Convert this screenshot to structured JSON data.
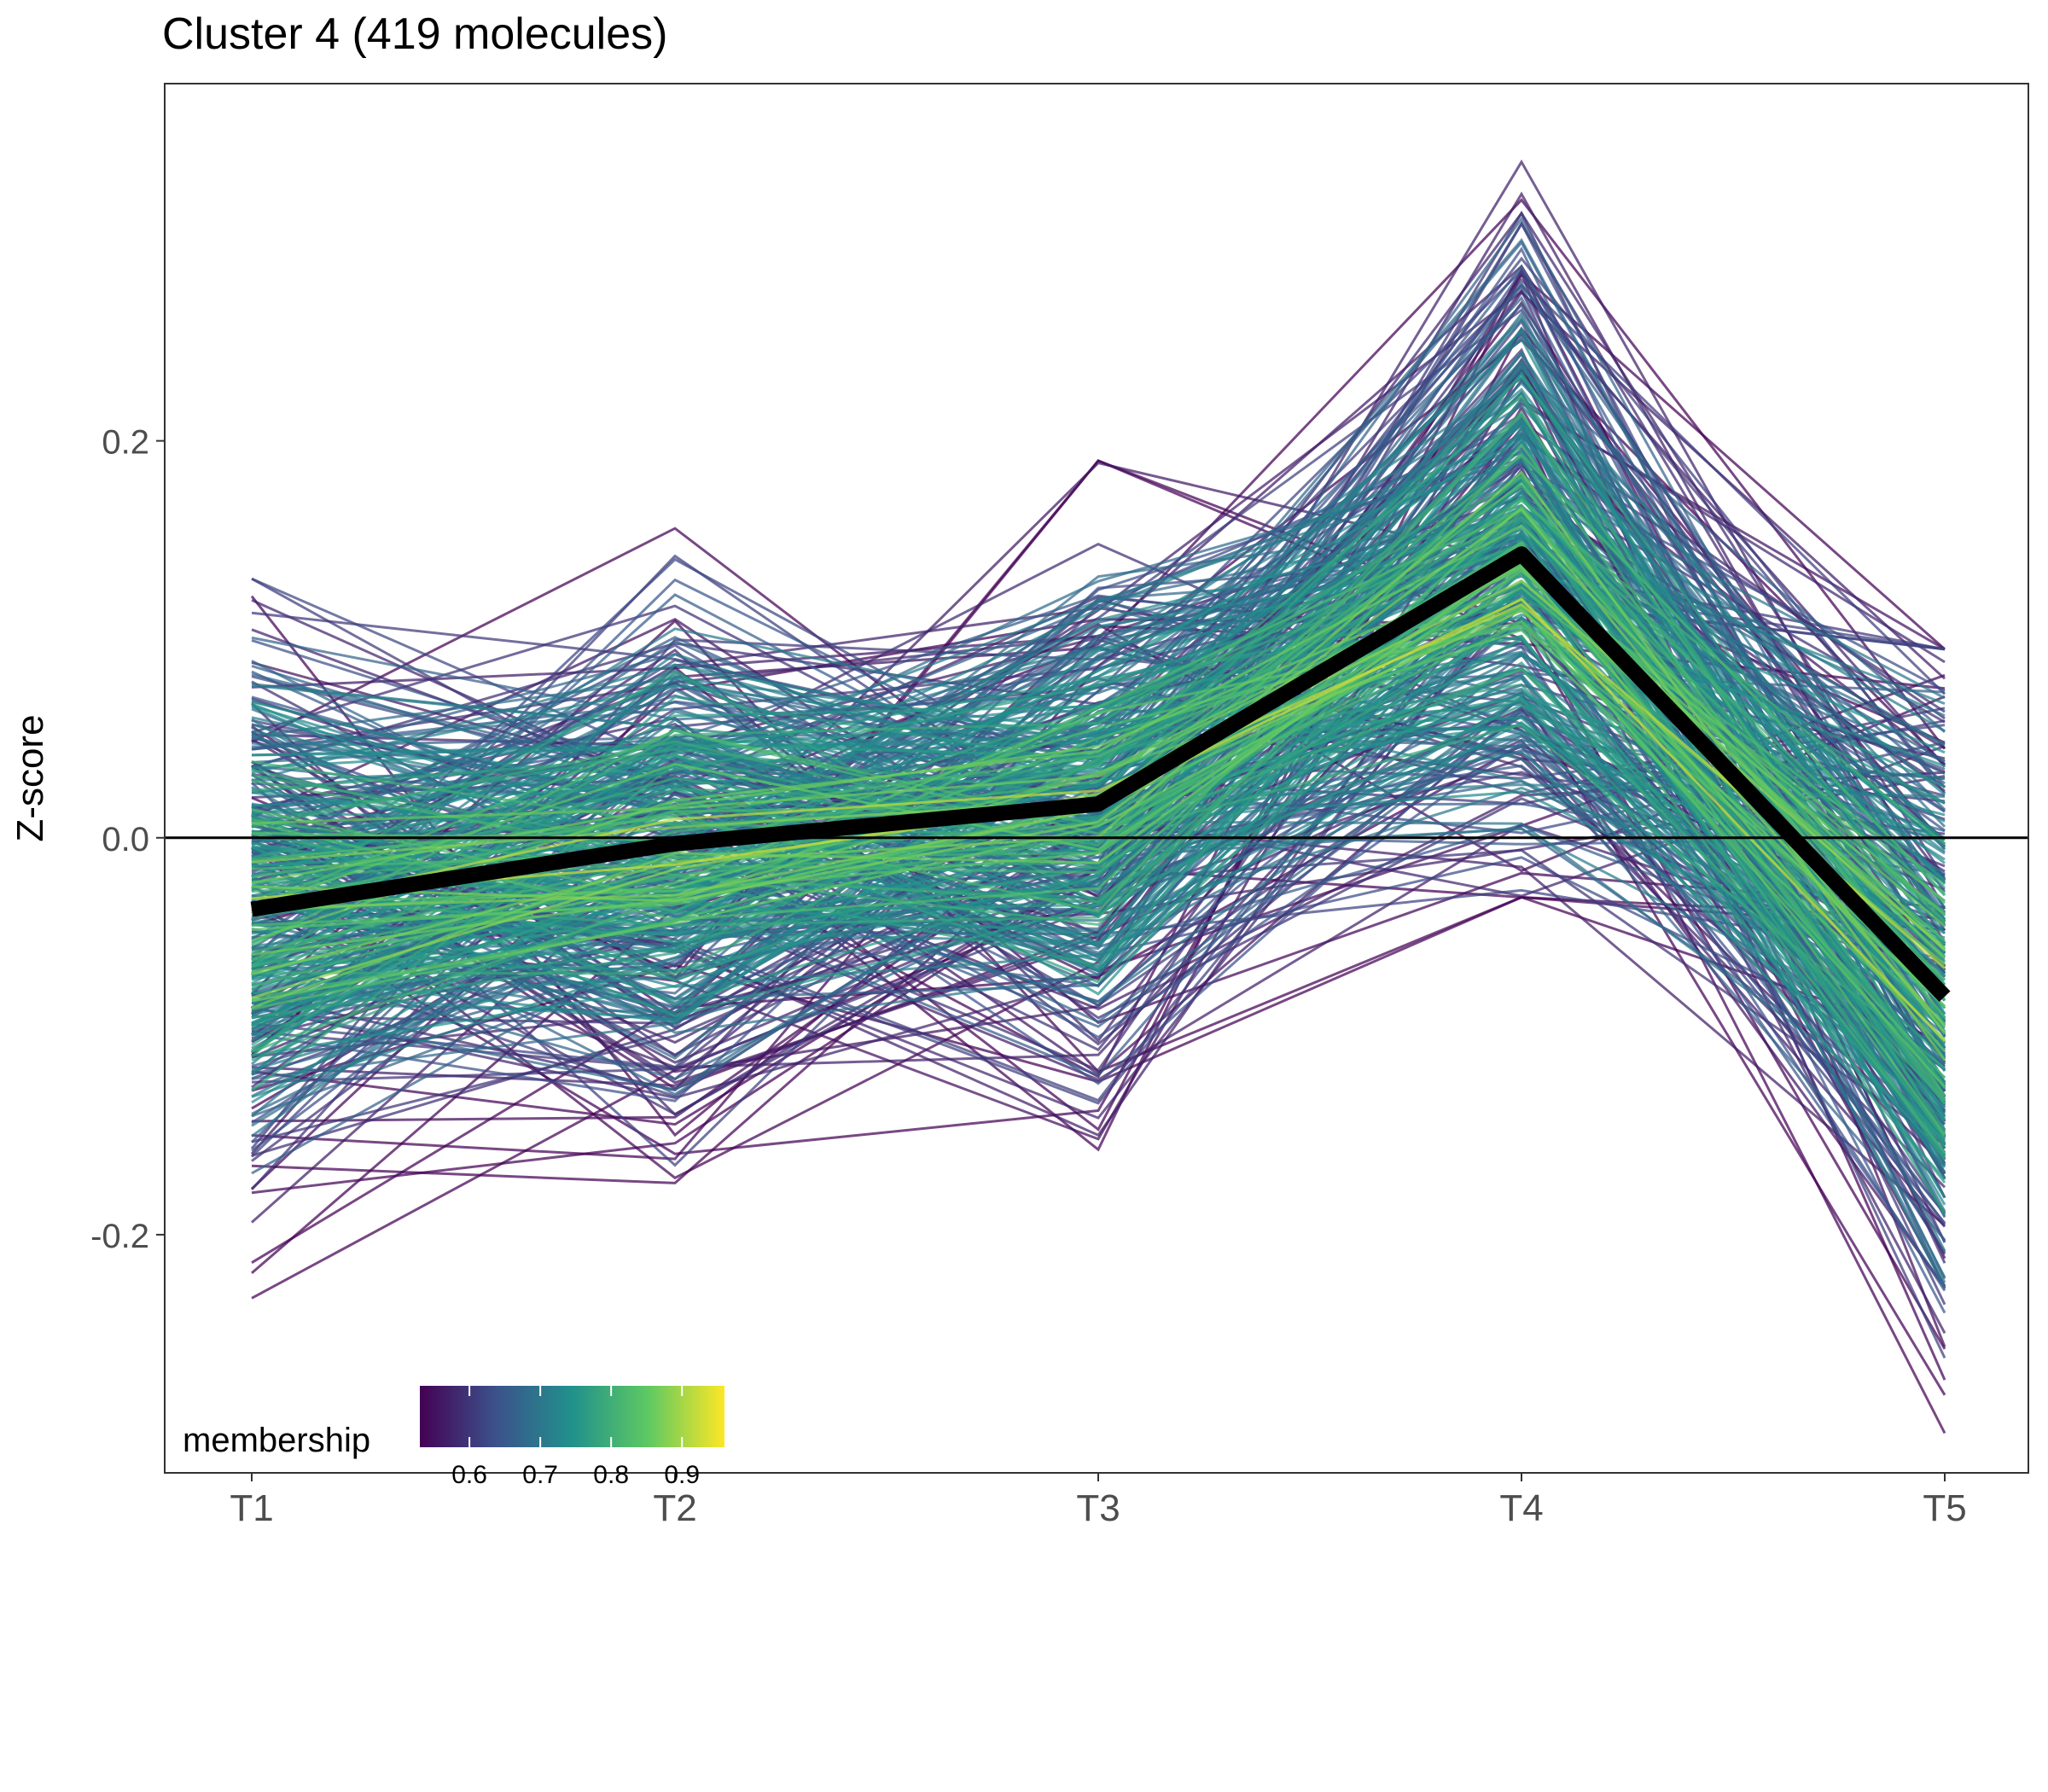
{
  "chart_data": {
    "type": "line",
    "title": "Cluster 4 (419 molecules)",
    "xlabel": "",
    "ylabel": "Z-score",
    "categories": [
      "T1",
      "T2",
      "T3",
      "T4",
      "T5"
    ],
    "ylim": [
      -0.32,
      0.38
    ],
    "yticks": [
      -0.2,
      0.0,
      0.2
    ],
    "ytick_labels": [
      "-0.2",
      "0.0",
      "0.2"
    ],
    "reference_line": 0.0,
    "grid": false,
    "n_molecules": 419,
    "centroid": {
      "values": [
        -0.036,
        -0.003,
        0.017,
        0.143,
        -0.08
      ],
      "color": "#000000"
    },
    "molecule_stats": {
      "mean": [
        -0.036,
        -0.003,
        0.017,
        0.143,
        -0.08
      ],
      "sd": [
        0.07,
        0.065,
        0.06,
        0.075,
        0.08
      ],
      "min": [
        -0.232,
        -0.174,
        -0.171,
        -0.03,
        -0.3
      ],
      "max": [
        0.143,
        0.18,
        0.19,
        0.35,
        0.095
      ]
    },
    "colorbar": {
      "title": "membership",
      "range": [
        0.53,
        0.96
      ],
      "ticks": [
        0.6,
        0.7,
        0.8,
        0.9
      ],
      "tick_labels": [
        "0.6",
        "0.7",
        "0.8",
        "0.9"
      ],
      "colors": [
        "#440154",
        "#3b528b",
        "#21918c",
        "#5ec962",
        "#fde725"
      ],
      "placement": "bottom-left"
    }
  }
}
